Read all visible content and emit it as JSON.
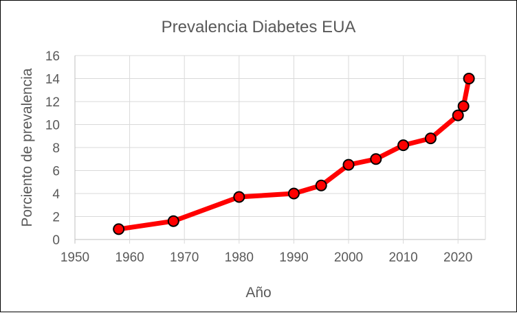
{
  "chart_data": {
    "type": "line",
    "title": "Prevalencia Diabetes EUA",
    "xlabel": "Año",
    "ylabel": "Porciento de prevalencia",
    "xlim": [
      1950,
      2025
    ],
    "ylim": [
      0,
      16
    ],
    "xticks": [
      1950,
      1960,
      1970,
      1980,
      1990,
      2000,
      2010,
      2020
    ],
    "yticks": [
      0,
      2,
      4,
      6,
      8,
      10,
      12,
      14,
      16
    ],
    "grid": true,
    "series": [
      {
        "name": "Prevalencia",
        "color": "#FF0000",
        "x": [
          1958,
          1968,
          1980,
          1990,
          1995,
          2000,
          2005,
          2010,
          2015,
          2020,
          2021,
          2022
        ],
        "y": [
          0.9,
          1.6,
          3.7,
          4.0,
          4.7,
          6.5,
          7.0,
          8.2,
          8.8,
          10.8,
          11.6,
          14.0
        ]
      }
    ]
  }
}
